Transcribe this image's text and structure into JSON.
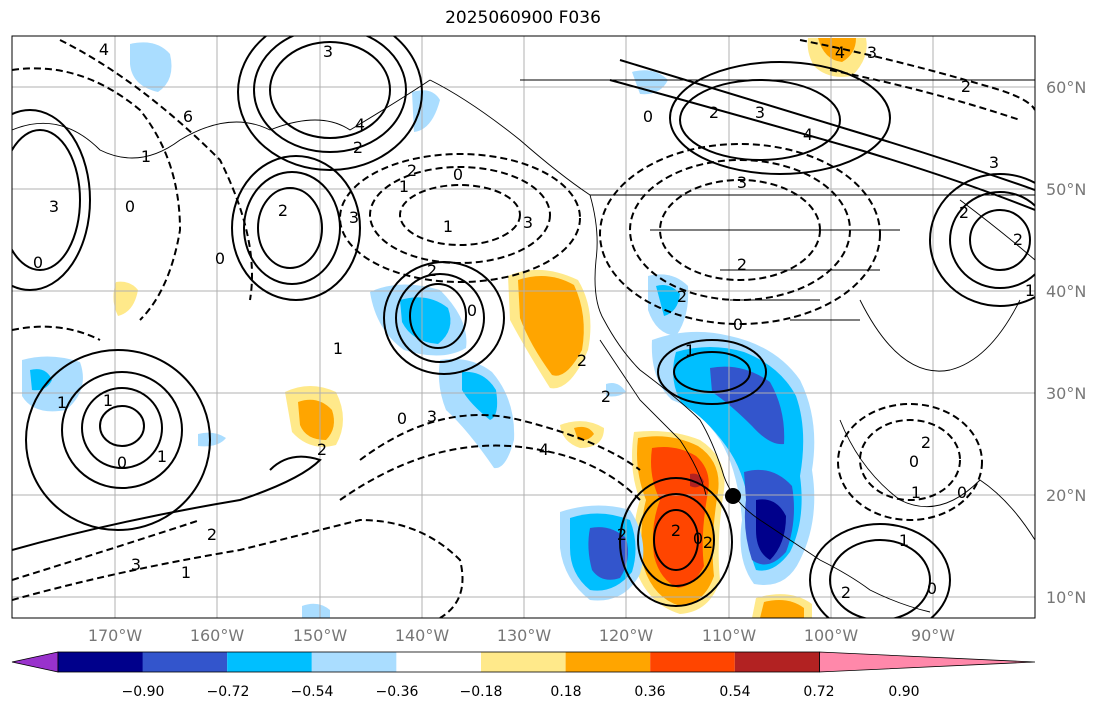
{
  "title": "2025060900 F036",
  "map": {
    "projection": "lat-lon",
    "lon_range": [
      -180,
      -80
    ],
    "lat_range": [
      8,
      65
    ],
    "lat_labels": [
      "60°N",
      "50°N",
      "40°N",
      "30°N",
      "20°N",
      "10°N"
    ],
    "lon_labels": [
      "170°W",
      "160°W",
      "150°W",
      "140°W",
      "130°W",
      "120°W",
      "110°W",
      "100°W",
      "90°W"
    ],
    "contour_labels": [
      "4",
      "3",
      "6",
      "2",
      "4",
      "2",
      "3",
      "2",
      "0",
      "3",
      "1",
      "0",
      "1",
      "2",
      "0",
      "2",
      "3",
      "4",
      "0",
      "4",
      "3",
      "2",
      "3",
      "2",
      "1",
      "2",
      "0",
      "2",
      "3",
      "2",
      "1",
      "0",
      "2",
      "4",
      "3",
      "0",
      "2",
      "1",
      "2",
      "2",
      "1",
      "3",
      "0",
      "1",
      "1",
      "2",
      "0",
      "1",
      "0",
      "0",
      "3",
      "1",
      "0",
      "1",
      "2",
      "2",
      "1",
      "2",
      "0",
      "2"
    ]
  },
  "colorbar": {
    "labels": [
      "−0.90",
      "−0.72",
      "−0.54",
      "−0.36",
      "−0.18",
      "0.18",
      "0.36",
      "0.54",
      "0.72",
      "0.90"
    ],
    "colors": [
      "#9932cc",
      "#00008b",
      "#3355cc",
      "#00bfff",
      "#aaddff",
      "#ffffff",
      "#ffe98a",
      "#ffa500",
      "#ff4500",
      "#b22222",
      "#ff88aa"
    ]
  }
}
